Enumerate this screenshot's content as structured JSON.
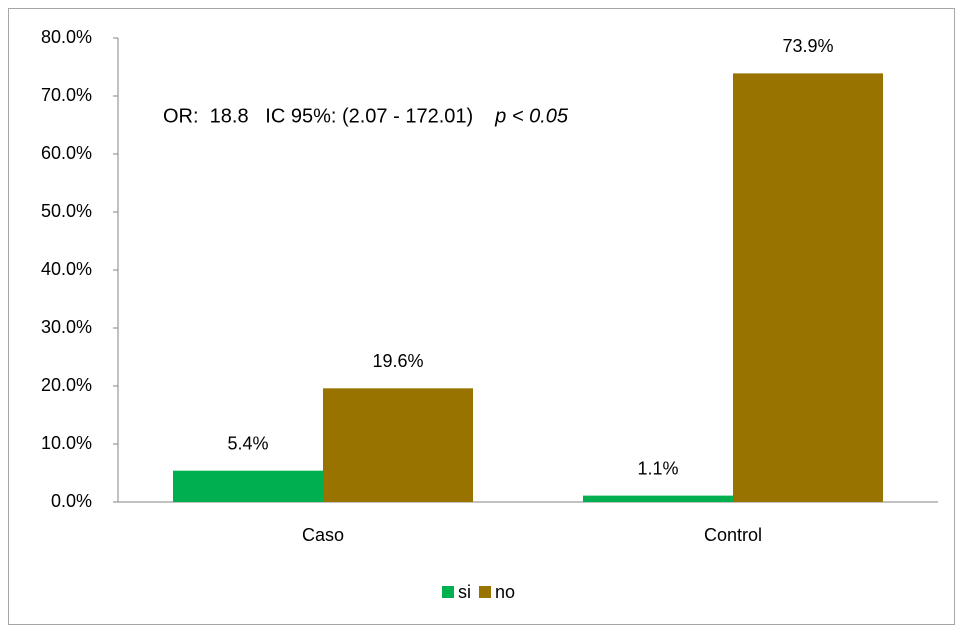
{
  "chart_data": {
    "type": "bar",
    "categories": [
      "Caso",
      "Control"
    ],
    "series": [
      {
        "name": "si",
        "color": "#00b050",
        "values": [
          5.4,
          1.1
        ],
        "value_labels": [
          "5.4%",
          "1.1%"
        ]
      },
      {
        "name": "no",
        "color": "#997300",
        "values": [
          19.6,
          73.9
        ],
        "value_labels": [
          "19.6%",
          "73.9%"
        ]
      }
    ],
    "ylim": [
      0,
      80
    ],
    "yticks": [
      {
        "value": 0,
        "label": "0.0%"
      },
      {
        "value": 10,
        "label": "10.0%"
      },
      {
        "value": 20,
        "label": "20.0%"
      },
      {
        "value": 30,
        "label": "30.0%"
      },
      {
        "value": 40,
        "label": "40.0%"
      },
      {
        "value": 50,
        "label": "50.0%"
      },
      {
        "value": 60,
        "label": "60.0%"
      },
      {
        "value": 70,
        "label": "70.0%"
      },
      {
        "value": 80,
        "label": "80.0%"
      }
    ],
    "annotations": [
      "OR:  18.8   IC 95%: (2.07 - 172.01)",
      "p < 0.05"
    ],
    "legend": "bottom"
  }
}
